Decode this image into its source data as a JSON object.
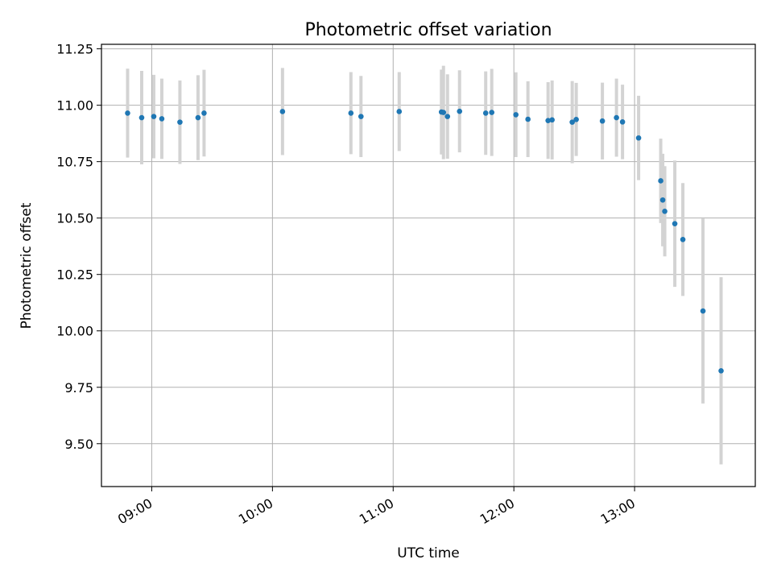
{
  "chart_data": {
    "type": "scatter",
    "title": "Photometric offset variation",
    "xlabel": "UTC time",
    "ylabel": "Photometric offset",
    "x_ticks": [
      "09:00",
      "10:00",
      "11:00",
      "12:00",
      "13:00"
    ],
    "y_ticks": [
      "9.50",
      "9.75",
      "10.00",
      "10.25",
      "10.50",
      "10.75",
      "11.00",
      "11.25"
    ],
    "xlim": [
      "08:35",
      "14:00"
    ],
    "ylim": [
      9.31,
      11.27
    ],
    "grid": true,
    "legend": "none",
    "colors": {
      "point": "#1f77b4",
      "errorbar": "#d3d3d3",
      "grid": "#b0b0b0"
    },
    "series": [
      {
        "x": [
          "08:48",
          "08:55",
          "09:01",
          "09:05",
          "09:14",
          "09:23",
          "09:26",
          "10:05",
          "10:39",
          "10:44",
          "11:03",
          "11:24",
          "11:25",
          "11:27",
          "11:33",
          "11:46",
          "11:49",
          "12:01",
          "12:07",
          "12:17",
          "12:19",
          "12:29",
          "12:31",
          "12:44",
          "12:51",
          "12:54",
          "13:02",
          "13:13",
          "13:14",
          "13:15",
          "13:20",
          "13:24",
          "13:34",
          "13:43"
        ],
        "y": [
          10.965,
          10.945,
          10.95,
          10.94,
          10.925,
          10.945,
          10.965,
          10.972,
          10.965,
          10.95,
          10.972,
          10.97,
          10.968,
          10.95,
          10.973,
          10.965,
          10.968,
          10.958,
          10.938,
          10.932,
          10.935,
          10.925,
          10.937,
          10.93,
          10.945,
          10.926,
          10.855,
          10.665,
          10.58,
          10.53,
          10.475,
          10.405,
          10.088,
          9.823
        ],
        "error": [
          0.197,
          0.207,
          0.185,
          0.178,
          0.185,
          0.188,
          0.192,
          0.193,
          0.182,
          0.18,
          0.175,
          0.188,
          0.207,
          0.187,
          0.182,
          0.185,
          0.193,
          0.188,
          0.168,
          0.17,
          0.175,
          0.182,
          0.162,
          0.17,
          0.173,
          0.165,
          0.187,
          0.187,
          0.205,
          0.2,
          0.28,
          0.25,
          0.41,
          0.415
        ]
      }
    ]
  }
}
